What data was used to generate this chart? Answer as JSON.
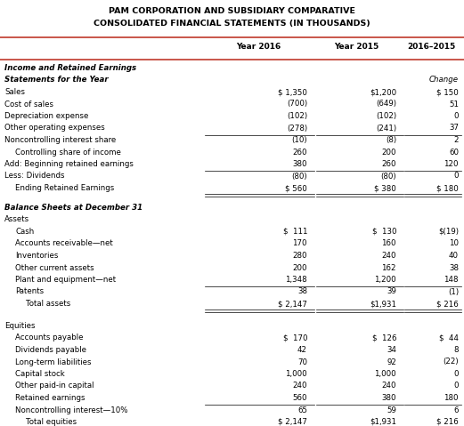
{
  "title_line1": "PAM CORPORATION AND SUBSIDIARY COMPARATIVE",
  "title_line2": "CONSOLIDATED FINANCIAL STATEMENTS (IN THOUSANDS)",
  "col_headers": [
    "Year 2016",
    "Year 2015",
    "2016–2015"
  ],
  "sections": [
    {
      "label": "Income and Retained Earnings",
      "bold": true,
      "italic": true,
      "indent": 0,
      "type": "section_header",
      "col1": "",
      "col2": "",
      "col3": ""
    },
    {
      "label": "Statements for the Year",
      "bold": true,
      "italic": true,
      "indent": 0,
      "type": "subheader",
      "col1": "",
      "col2": "",
      "col3": "Change"
    },
    {
      "label": "Sales",
      "bold": false,
      "italic": false,
      "indent": 0,
      "type": "normal",
      "col1": "$ 1,350",
      "col2": "$1,200",
      "col3": "$ 150"
    },
    {
      "label": "Cost of sales",
      "bold": false,
      "italic": false,
      "indent": 0,
      "type": "normal",
      "col1": "(700)",
      "col2": "(649)",
      "col3": "51"
    },
    {
      "label": "Depreciation expense",
      "bold": false,
      "italic": false,
      "indent": 0,
      "type": "normal",
      "col1": "(102)",
      "col2": "(102)",
      "col3": "0"
    },
    {
      "label": "Other operating expenses",
      "bold": false,
      "italic": false,
      "indent": 0,
      "type": "normal",
      "col1": "(278)",
      "col2": "(241)",
      "col3": "37"
    },
    {
      "label": "Noncontrolling interest share",
      "bold": false,
      "italic": false,
      "indent": 0,
      "type": "underline_above_cols",
      "col1": "(10)",
      "col2": "(8)",
      "col3": "2"
    },
    {
      "label": "Controlling share of income",
      "bold": false,
      "italic": false,
      "indent": 1,
      "type": "normal",
      "col1": "260",
      "col2": "200",
      "col3": "60"
    },
    {
      "label": "Add: Beginning retained earnings",
      "bold": false,
      "italic": false,
      "indent": 0,
      "type": "normal",
      "col1": "380",
      "col2": "260",
      "col3": "120"
    },
    {
      "label": "Less: Dividends",
      "bold": false,
      "italic": false,
      "indent": 0,
      "type": "underline_above_cols",
      "col1": "(80)",
      "col2": "(80)",
      "col3": "0"
    },
    {
      "label": "Ending Retained Earnings",
      "bold": false,
      "italic": false,
      "indent": 1,
      "type": "double_underline",
      "col1": "$ 560",
      "col2": "$ 380",
      "col3": "$ 180"
    },
    {
      "label": "Balance Sheets at December 31",
      "bold": true,
      "italic": true,
      "indent": 0,
      "type": "section_header",
      "col1": "",
      "col2": "",
      "col3": ""
    },
    {
      "label": "Assets",
      "bold": false,
      "italic": false,
      "indent": 0,
      "type": "normal",
      "col1": "",
      "col2": "",
      "col3": ""
    },
    {
      "label": "Cash",
      "bold": false,
      "italic": false,
      "indent": 1,
      "type": "normal",
      "col1": "$  111",
      "col2": "$  130",
      "col3": "$(19)"
    },
    {
      "label": "Accounts receivable—net",
      "bold": false,
      "italic": false,
      "indent": 1,
      "type": "normal",
      "col1": "170",
      "col2": "160",
      "col3": "10"
    },
    {
      "label": "Inventories",
      "bold": false,
      "italic": false,
      "indent": 1,
      "type": "normal",
      "col1": "280",
      "col2": "240",
      "col3": "40"
    },
    {
      "label": "Other current assets",
      "bold": false,
      "italic": false,
      "indent": 1,
      "type": "normal",
      "col1": "200",
      "col2": "162",
      "col3": "38"
    },
    {
      "label": "Plant and equipment—net",
      "bold": false,
      "italic": false,
      "indent": 1,
      "type": "normal",
      "col1": "1,348",
      "col2": "1,200",
      "col3": "148"
    },
    {
      "label": "Patents",
      "bold": false,
      "italic": false,
      "indent": 1,
      "type": "underline_above_cols",
      "col1": "38",
      "col2": "39",
      "col3": "(1)"
    },
    {
      "label": "Total assets",
      "bold": false,
      "italic": false,
      "indent": 2,
      "type": "double_underline",
      "col1": "$ 2,147",
      "col2": "$1,931",
      "col3": "$ 216"
    },
    {
      "label": "",
      "bold": false,
      "italic": false,
      "indent": 0,
      "type": "spacer",
      "col1": "",
      "col2": "",
      "col3": ""
    },
    {
      "label": "Equities",
      "bold": false,
      "italic": false,
      "indent": 0,
      "type": "normal",
      "col1": "",
      "col2": "",
      "col3": ""
    },
    {
      "label": "Accounts payable",
      "bold": false,
      "italic": false,
      "indent": 1,
      "type": "normal",
      "col1": "$  170",
      "col2": "$  126",
      "col3": "$  44"
    },
    {
      "label": "Dividends payable",
      "bold": false,
      "italic": false,
      "indent": 1,
      "type": "normal",
      "col1": "42",
      "col2": "34",
      "col3": "8"
    },
    {
      "label": "Long-term liabilities",
      "bold": false,
      "italic": false,
      "indent": 1,
      "type": "normal",
      "col1": "70",
      "col2": "92",
      "col3": "(22)"
    },
    {
      "label": "Capital stock",
      "bold": false,
      "italic": false,
      "indent": 1,
      "type": "normal",
      "col1": "1,000",
      "col2": "1,000",
      "col3": "0"
    },
    {
      "label": "Other paid-in capital",
      "bold": false,
      "italic": false,
      "indent": 1,
      "type": "normal",
      "col1": "240",
      "col2": "240",
      "col3": "0"
    },
    {
      "label": "Retained earnings",
      "bold": false,
      "italic": false,
      "indent": 1,
      "type": "normal",
      "col1": "560",
      "col2": "380",
      "col3": "180"
    },
    {
      "label": "Noncontrolling interest—10%",
      "bold": false,
      "italic": false,
      "indent": 1,
      "type": "underline_above_cols",
      "col1": "65",
      "col2": "59",
      "col3": "6"
    },
    {
      "label": "Total equities",
      "bold": false,
      "italic": false,
      "indent": 2,
      "type": "double_underline",
      "col1": "$ 2,147",
      "col2": "$1,931",
      "col3": "$ 216"
    }
  ],
  "bg_color": "#ffffff",
  "title_color": "#000000",
  "text_color": "#000000",
  "header_line_color": "#c0392b"
}
